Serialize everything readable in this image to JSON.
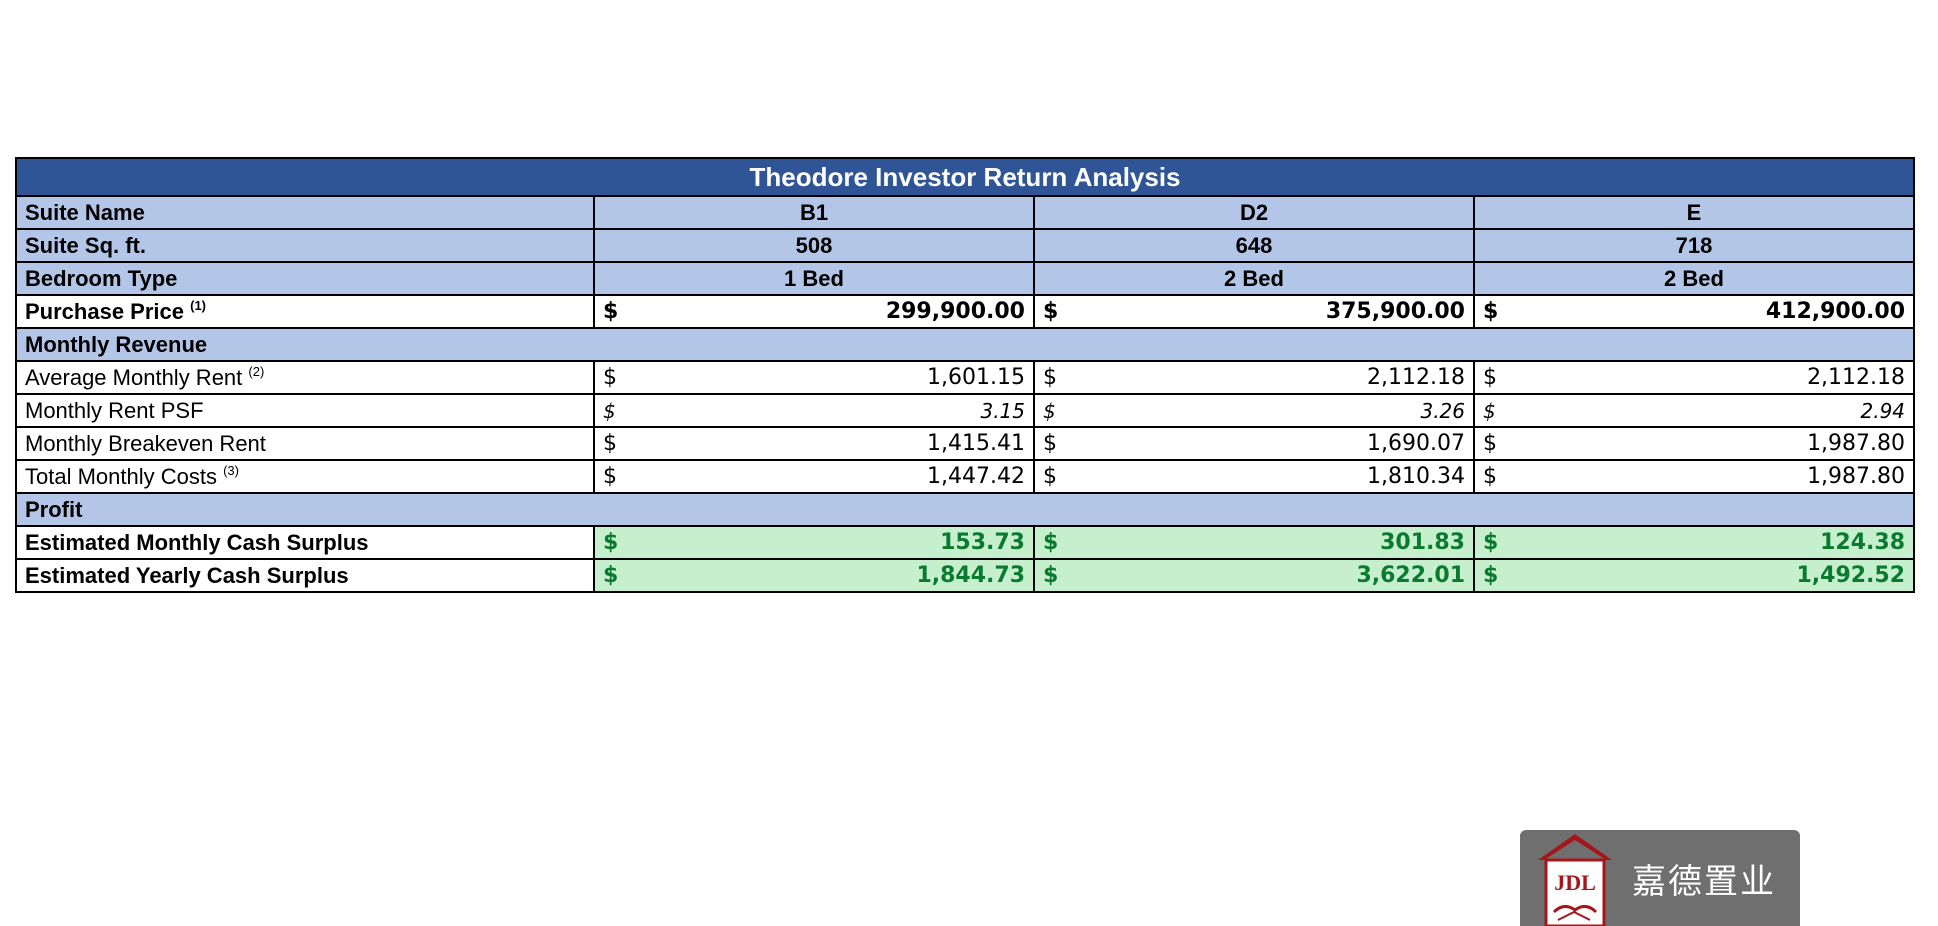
{
  "title": "Theodore Investor Return Analysis",
  "header_rows": [
    {
      "label": "Suite Name",
      "values": [
        "B1",
        "D2",
        "E"
      ]
    },
    {
      "label": "Suite Sq. ft.",
      "values": [
        "508",
        "648",
        "718"
      ]
    },
    {
      "label": "Bedroom Type",
      "values": [
        "1 Bed",
        "2 Bed",
        "2 Bed"
      ]
    }
  ],
  "purchase_price": {
    "label": "Purchase Price",
    "note": "(1)",
    "currency": "$",
    "values": [
      "299,900.00",
      "375,900.00",
      "412,900.00"
    ]
  },
  "monthly_revenue": {
    "section_label": "Monthly Revenue",
    "rows": [
      {
        "label": "Average Monthly Rent",
        "note": "(2)",
        "currency": "$",
        "values": [
          "1,601.15",
          "2,112.18",
          "2,112.18"
        ]
      },
      {
        "label": "Monthly Rent PSF",
        "note": "",
        "currency": "$",
        "values": [
          "3.15",
          "3.26",
          "2.94"
        ]
      },
      {
        "label": "Monthly Breakeven Rent",
        "note": "",
        "currency": "$",
        "values": [
          "1,415.41",
          "1,690.07",
          "1,987.80"
        ]
      },
      {
        "label": "Total Monthly Costs",
        "note": "(3)",
        "currency": "$",
        "values": [
          "1,447.42",
          "1,810.34",
          "1,987.80"
        ]
      }
    ]
  },
  "profit": {
    "section_label": "Profit",
    "rows": [
      {
        "label": "Estimated Monthly Cash Surplus",
        "currency": "$",
        "values": [
          "153.73",
          "301.83",
          "124.38"
        ]
      },
      {
        "label": "Estimated Yearly Cash Surplus",
        "currency": "$",
        "values": [
          "1,844.73",
          "3,622.01",
          "1,492.52"
        ]
      }
    ]
  },
  "watermark": {
    "logo_text": "JDL",
    "text": "嘉德置业"
  },
  "colors": {
    "title_bg": "#2f5597",
    "header_bg": "#b4c6e7",
    "profit_bg": "#c6efce",
    "profit_text": "#0a7a2f",
    "logo_red": "#a4161a"
  }
}
